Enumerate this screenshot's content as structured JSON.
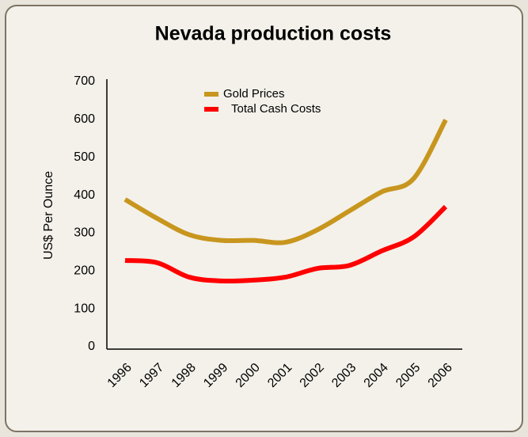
{
  "chart_data": {
    "type": "line",
    "title": "Nevada production costs",
    "y_label": "US$ Per Ounce",
    "categories": [
      "1996",
      "1997",
      "1998",
      "1999",
      "2000",
      "2001",
      "2002",
      "2003",
      "2004",
      "2005",
      "2006"
    ],
    "series": [
      {
        "name": "Gold Prices",
        "color": "#c8961e",
        "values": [
          395,
          345,
          302,
          287,
          287,
          282,
          315,
          365,
          415,
          450,
          605
        ]
      },
      {
        "name": "Total Cash Costs",
        "color": "#ff0000",
        "values": [
          234,
          228,
          190,
          180,
          182,
          190,
          213,
          221,
          259,
          296,
          376
        ]
      }
    ],
    "ylim": [
      0,
      700
    ],
    "yticks": [
      0,
      100,
      200,
      300,
      400,
      500,
      600,
      700
    ]
  }
}
